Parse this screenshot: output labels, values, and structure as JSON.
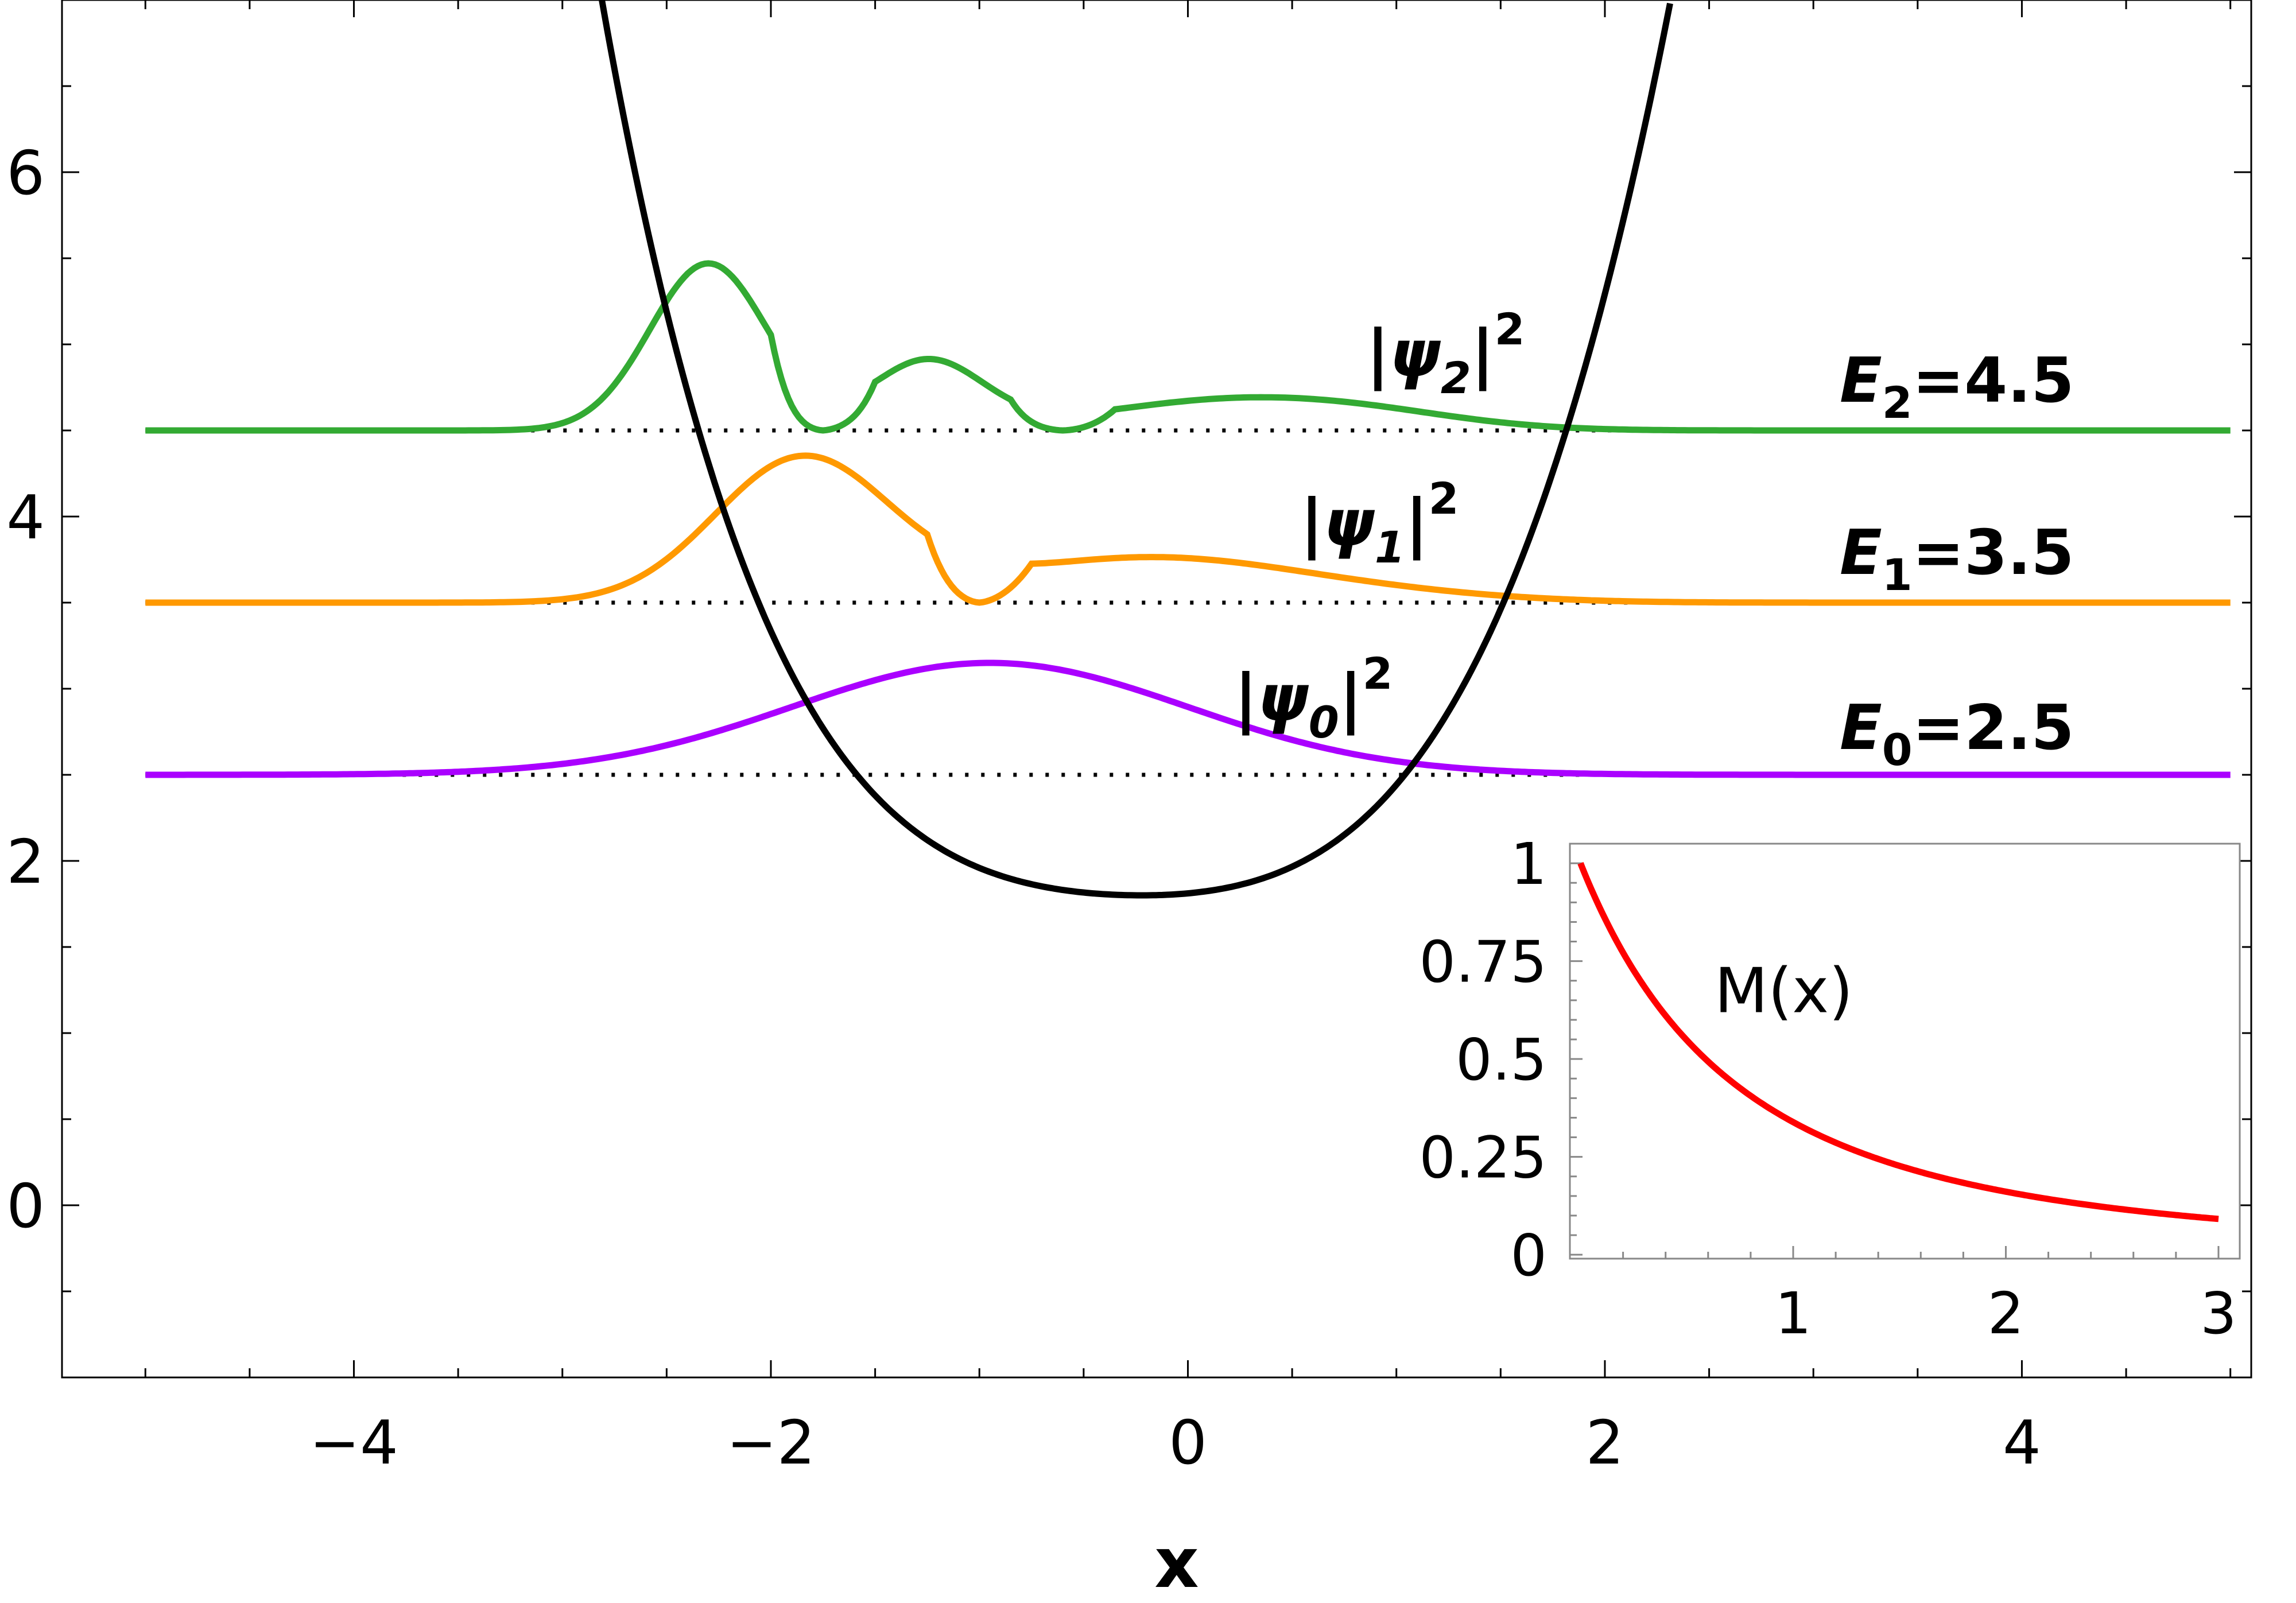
{
  "chart_data": [
    {
      "type": "line",
      "title": "",
      "xlabel": "x",
      "ylabel": "",
      "xlim": [
        -5.4,
        5.1
      ],
      "ylim": [
        -1.0,
        7.0
      ],
      "grid": false,
      "x_ticks": [
        -4,
        -2,
        0,
        2,
        4
      ],
      "x_tick_labels": [
        "−4",
        "−2",
        "0",
        "2",
        "4"
      ],
      "y_ticks": [
        0,
        2,
        4,
        6
      ],
      "y_tick_labels": [
        "0",
        "2",
        "4",
        "6"
      ],
      "potential": {
        "color": "#000000",
        "x_range": [
          -3.6,
          3.1
        ],
        "minimum_x": -0.22,
        "minimum_value": 1.8
      },
      "levels": [
        {
          "n": 0,
          "energy": 2.5,
          "color": "#aa00ff",
          "label_base": "|ψ",
          "label_sub": "0",
          "label_close": "|",
          "label_sup": "2",
          "energy_label_base": "E",
          "energy_label_sub": "0",
          "energy_label_value": "=2.5"
        },
        {
          "n": 1,
          "energy": 3.5,
          "color": "#ff9900",
          "label_base": "|ψ",
          "label_sub": "1",
          "label_close": "|",
          "label_sup": "2",
          "energy_label_base": "E",
          "energy_label_sub": "1",
          "energy_label_value": "=3.5"
        },
        {
          "n": 2,
          "energy": 4.5,
          "color": "#33aa33",
          "label_base": "|ψ",
          "label_sub": "2",
          "label_close": "|",
          "label_sup": "2",
          "energy_label_base": "E",
          "energy_label_sub": "2",
          "energy_label_value": "=4.5"
        }
      ],
      "wavefunction_peaks": [
        {
          "n": 0,
          "peaks_x": [
            -0.95
          ],
          "peak_heights": [
            0.65
          ]
        },
        {
          "n": 1,
          "peaks_x": [
            -1.85,
            -0.2
          ],
          "peak_heights": [
            0.83,
            0.26
          ],
          "nodes_x": [
            -1.0
          ]
        },
        {
          "n": 2,
          "peaks_x": [
            -2.3,
            -1.25,
            0.2
          ],
          "peak_heights": [
            0.97,
            0.4,
            0.17
          ],
          "nodes_x": [
            -1.75,
            -0.6
          ]
        }
      ],
      "x_range_curves": [
        -5.0,
        5.0
      ]
    },
    {
      "type": "line",
      "title": "",
      "xlabel": "",
      "ylabel": "",
      "xlim": [
        -0.05,
        3.1
      ],
      "ylim": [
        -0.01,
        1.05
      ],
      "x_ticks": [
        1,
        2,
        3
      ],
      "x_tick_labels": [
        "1",
        "2",
        "3"
      ],
      "y_ticks": [
        0,
        0.25,
        0.5,
        0.75,
        1
      ],
      "y_tick_labels": [
        "0",
        "0.25",
        "0.5",
        "0.75",
        "1"
      ],
      "series": [
        {
          "name": "M(x)",
          "color": "#ff0000",
          "x": [
            0,
            0.5,
            1,
            1.5,
            2,
            2.5,
            3
          ],
          "y": [
            1.0,
            0.58,
            0.36,
            0.23,
            0.15,
            0.1,
            0.05
          ]
        }
      ]
    }
  ]
}
